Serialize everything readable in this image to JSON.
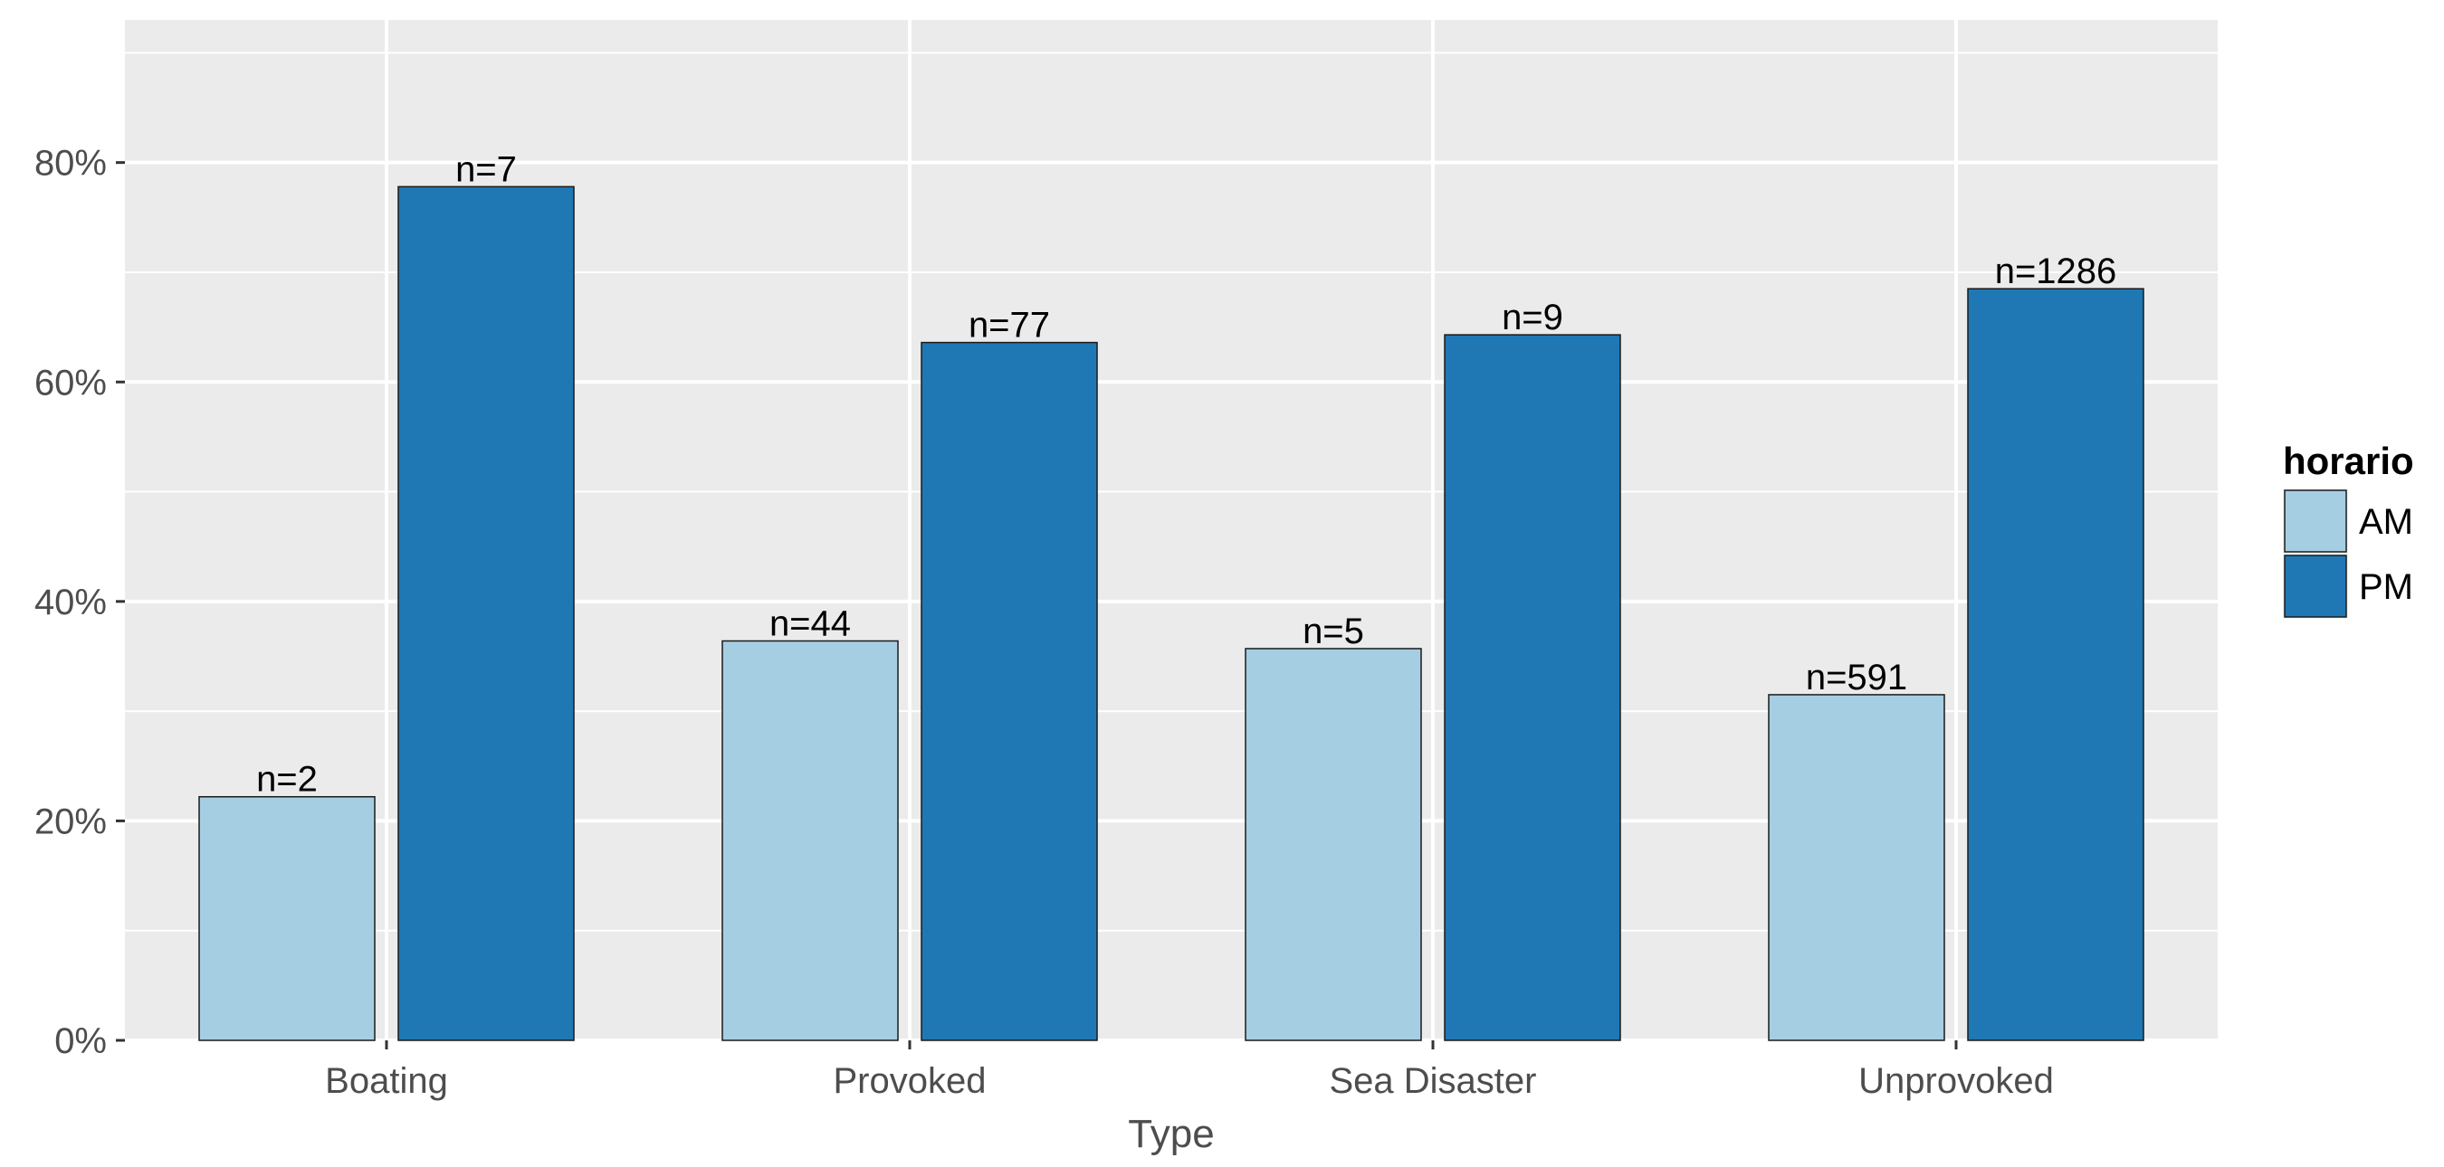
{
  "chart_data": {
    "type": "bar",
    "title": "",
    "xlabel": "Type",
    "ylabel": "",
    "categories": [
      "Boating",
      "Provoked",
      "Sea Disaster",
      "Unprovoked"
    ],
    "y_ticks": [
      "0%",
      "20%",
      "40%",
      "60%",
      "80%"
    ],
    "y_tick_values": [
      0,
      20,
      40,
      60,
      80
    ],
    "ylim": [
      0,
      93
    ],
    "grid": true,
    "legend": {
      "title": "horario",
      "position": "right"
    },
    "series": [
      {
        "name": "AM",
        "color": "#a6cee3",
        "values": [
          22.2,
          36.4,
          35.7,
          31.5
        ],
        "labels": [
          "n=2",
          "n=44",
          "n=5",
          "n=591"
        ]
      },
      {
        "name": "PM",
        "color": "#1f78b4",
        "values": [
          77.8,
          63.6,
          64.3,
          68.5
        ],
        "labels": [
          "n=7",
          "n=77",
          "n=9",
          "n=1286"
        ]
      }
    ]
  }
}
